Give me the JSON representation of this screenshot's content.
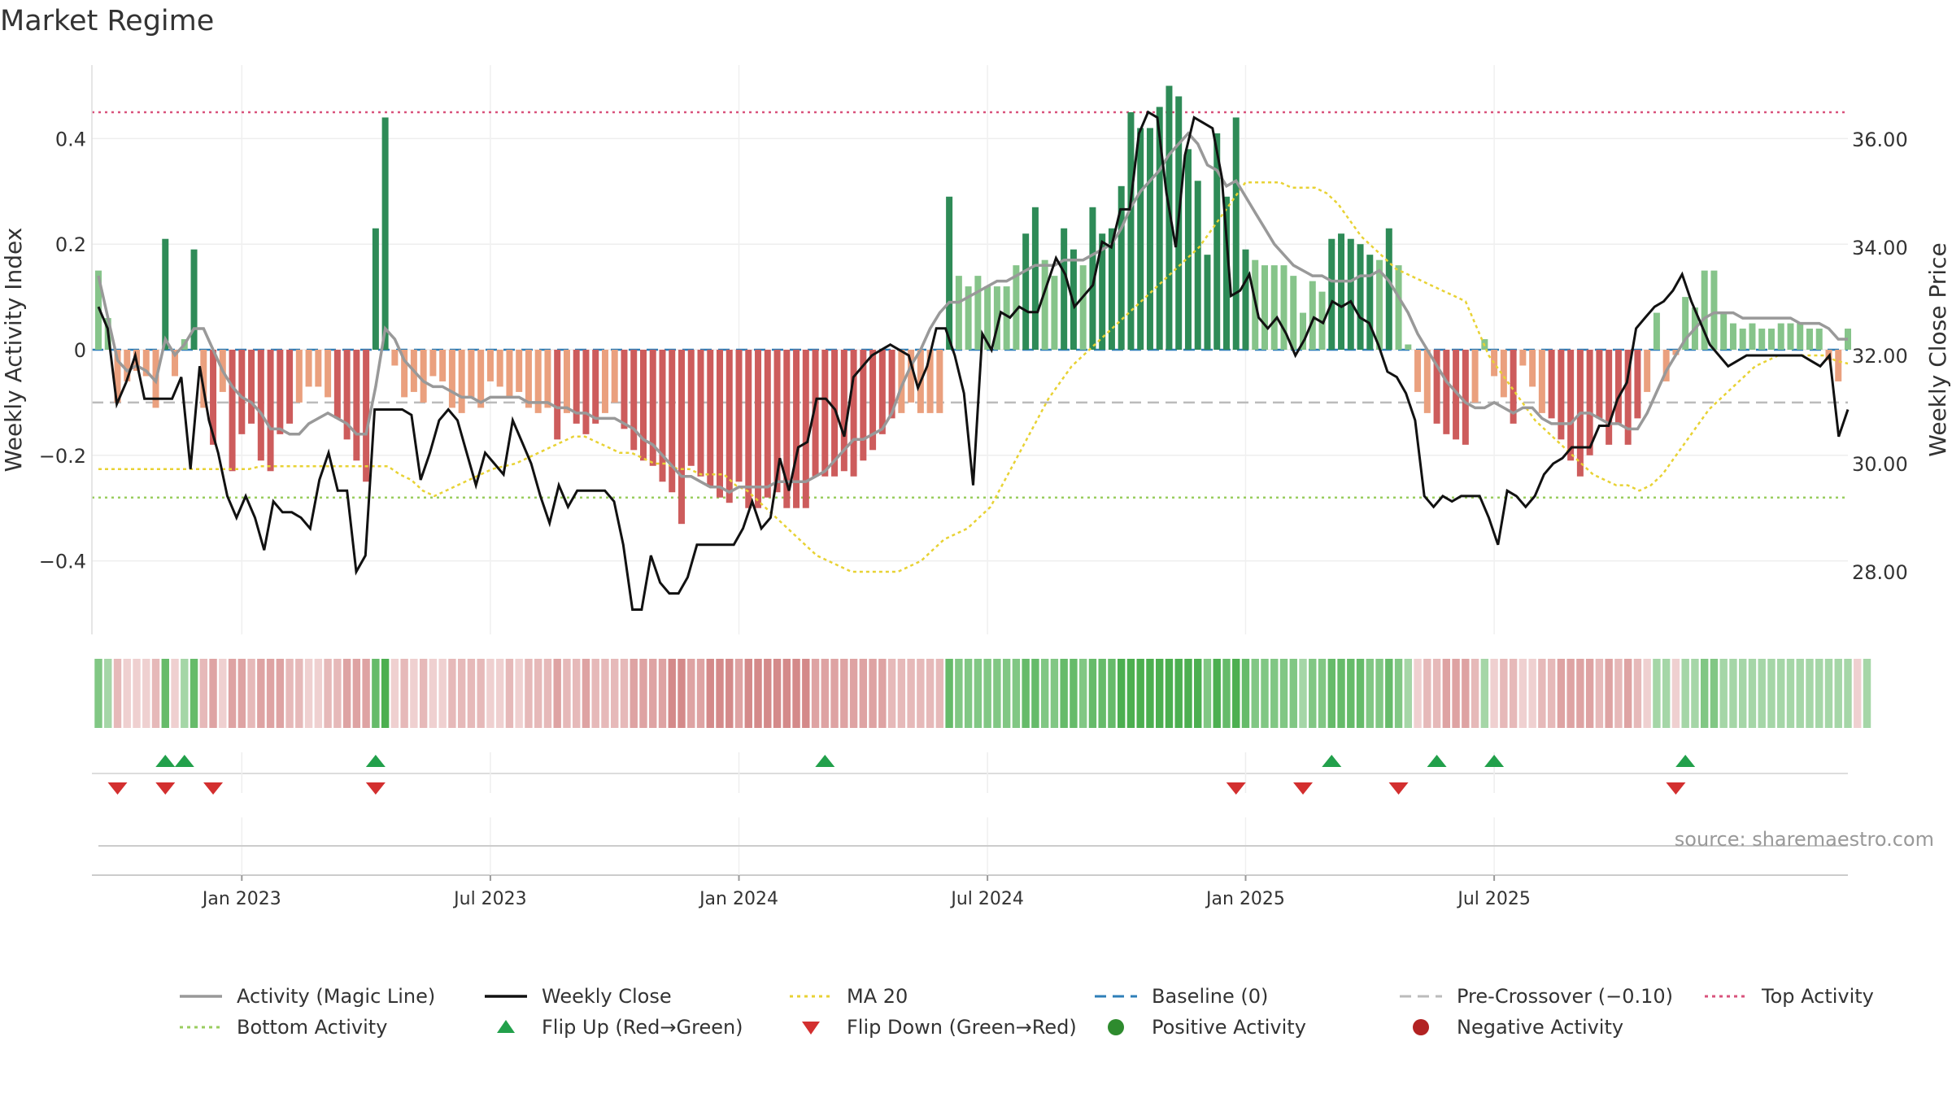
{
  "title": "Market Regime",
  "source": "source: sharemaestro.com",
  "chart_data": {
    "type": "bar",
    "ylabel_left": "Weekly Activity Index",
    "ylabel_right": "Weekly Close Price",
    "left_ticks": [
      {
        "value": 0.4,
        "label": "0.4"
      },
      {
        "value": 0.2,
        "label": "0.2"
      },
      {
        "value": 0,
        "label": "0"
      },
      {
        "value": -0.2,
        "label": "−0.2"
      },
      {
        "value": -0.4,
        "label": "−0.4"
      }
    ],
    "right_ticks": [
      {
        "value": 36,
        "label": "36.00"
      },
      {
        "value": 34,
        "label": "34.00"
      },
      {
        "value": 32,
        "label": "32.00"
      },
      {
        "value": 30,
        "label": "30.00"
      },
      {
        "value": 28,
        "label": "28.00"
      }
    ],
    "x_ticks": [
      {
        "week": 15,
        "label": "Jan 2023"
      },
      {
        "week": 41,
        "label": "Jul 2023"
      },
      {
        "week": 67,
        "label": "Jan 2024"
      },
      {
        "week": 93,
        "label": "Jul 2024"
      },
      {
        "week": 120,
        "label": "Jan 2025"
      },
      {
        "week": 146,
        "label": "Jul 2025"
      }
    ],
    "levels": {
      "top": 0.45,
      "bottom": -0.28,
      "pre_crossover": -0.1,
      "baseline": 0
    },
    "activity": [
      0.15,
      0.06,
      -0.1,
      -0.06,
      -0.04,
      -0.05,
      -0.11,
      0.21,
      -0.05,
      0.02,
      0.19,
      -0.11,
      -0.18,
      -0.08,
      -0.23,
      -0.16,
      -0.14,
      -0.21,
      -0.23,
      -0.16,
      -0.14,
      -0.1,
      -0.07,
      -0.07,
      -0.09,
      -0.13,
      -0.17,
      -0.21,
      -0.25,
      0.23,
      0.44,
      -0.03,
      -0.09,
      -0.08,
      -0.1,
      -0.05,
      -0.06,
      -0.11,
      -0.12,
      -0.09,
      -0.11,
      -0.06,
      -0.07,
      -0.09,
      -0.08,
      -0.11,
      -0.12,
      -0.11,
      -0.17,
      -0.12,
      -0.14,
      -0.16,
      -0.14,
      -0.12,
      -0.1,
      -0.15,
      -0.19,
      -0.21,
      -0.22,
      -0.25,
      -0.27,
      -0.33,
      -0.22,
      -0.24,
      -0.26,
      -0.28,
      -0.29,
      -0.25,
      -0.3,
      -0.3,
      -0.28,
      -0.27,
      -0.3,
      -0.3,
      -0.3,
      -0.24,
      -0.24,
      -0.24,
      -0.23,
      -0.24,
      -0.21,
      -0.19,
      -0.16,
      -0.13,
      -0.12,
      -0.1,
      -0.12,
      -0.12,
      -0.12,
      0.29,
      0.14,
      0.12,
      0.14,
      0.12,
      0.12,
      0.12,
      0.16,
      0.22,
      0.27,
      0.17,
      0.14,
      0.23,
      0.19,
      0.16,
      0.27,
      0.22,
      0.23,
      0.31,
      0.45,
      0.42,
      0.42,
      0.46,
      0.5,
      0.48,
      0.38,
      0.32,
      0.18,
      0.41,
      0.29,
      0.44,
      0.19,
      0.17,
      0.16,
      0.16,
      0.16,
      0.14,
      0.07,
      0.13,
      0.11,
      0.21,
      0.22,
      0.21,
      0.2,
      0.18,
      0.17,
      0.23,
      0.16,
      0.01,
      -0.08,
      -0.12,
      -0.14,
      -0.16,
      -0.17,
      -0.18,
      -0.1,
      0.02,
      -0.05,
      -0.09,
      -0.14,
      -0.03,
      -0.07,
      -0.12,
      -0.13,
      -0.17,
      -0.21,
      -0.24,
      -0.2,
      -0.13,
      -0.18,
      -0.14,
      -0.18,
      -0.13,
      -0.08,
      0.07,
      -0.06,
      -0.01,
      0.1,
      0.08,
      0.15,
      0.15,
      0.07,
      0.05,
      0.04,
      0.05,
      0.04,
      0.04,
      0.05,
      0.05,
      0.05,
      0.04,
      0.04,
      -0.02,
      -0.06,
      0.04
    ],
    "weekly_close": [
      32.9,
      32.5,
      31.1,
      31.5,
      32.0,
      31.2,
      31.2,
      31.2,
      31.2,
      31.6,
      29.9,
      31.8,
      30.8,
      30.2,
      29.4,
      29.0,
      29.4,
      29.0,
      28.4,
      29.3,
      29.1,
      29.1,
      29.0,
      28.8,
      29.7,
      30.2,
      29.5,
      29.5,
      28.0,
      28.3,
      31.0,
      31.0,
      31.0,
      31.0,
      30.9,
      29.7,
      30.2,
      30.8,
      31.0,
      30.8,
      30.2,
      29.6,
      30.2,
      30.0,
      29.8,
      30.8,
      30.4,
      30.0,
      29.4,
      28.9,
      29.6,
      29.2,
      29.5,
      29.5,
      29.5,
      29.5,
      29.3,
      28.5,
      27.3,
      27.3,
      28.3,
      27.8,
      27.6,
      27.6,
      27.9,
      28.5,
      28.5,
      28.5,
      28.5,
      28.5,
      28.8,
      29.3,
      28.8,
      29.0,
      30.1,
      29.5,
      30.3,
      30.4,
      31.2,
      31.2,
      31.0,
      30.5,
      31.6,
      31.8,
      32.0,
      32.1,
      32.2,
      32.1,
      32.0,
      31.4,
      31.8,
      32.5,
      32.5,
      32.0,
      31.3,
      29.6,
      32.4,
      32.1,
      32.8,
      32.7,
      32.9,
      32.8,
      32.8,
      33.3,
      33.8,
      33.5,
      32.9,
      33.1,
      33.3,
      34.1,
      34.0,
      34.7,
      34.7,
      36.1,
      36.5,
      36.4,
      35.0,
      34.0,
      35.7,
      36.4,
      36.3,
      36.2,
      35.3,
      33.1,
      33.2,
      33.5,
      32.7,
      32.5,
      32.7,
      32.4,
      32.0,
      32.3,
      32.7,
      32.6,
      33.0,
      32.9,
      33.0,
      32.7,
      32.6,
      32.2,
      31.7,
      31.6,
      31.3,
      30.8,
      29.4,
      29.2,
      29.4,
      29.3,
      29.4,
      29.4,
      29.4,
      29.0,
      28.5,
      29.5,
      29.4,
      29.2,
      29.4,
      29.8,
      30.0,
      30.1,
      30.3,
      30.3,
      30.3,
      30.7,
      30.7,
      31.2,
      31.5,
      32.5,
      32.7,
      32.9,
      33.0,
      33.2,
      33.5,
      33.0,
      32.6,
      32.2,
      32.0,
      31.8,
      31.9,
      32.0,
      32.0,
      32.0,
      32.0,
      32.0,
      32.0,
      32.0,
      31.9,
      31.8,
      32.0,
      30.5,
      31.0
    ],
    "magic_line": [
      0.14,
      0.06,
      -0.02,
      -0.04,
      -0.03,
      -0.04,
      -0.06,
      0.02,
      -0.01,
      0.01,
      0.04,
      0.04,
      0.0,
      -0.04,
      -0.07,
      -0.09,
      -0.1,
      -0.12,
      -0.15,
      -0.15,
      -0.16,
      -0.16,
      -0.14,
      -0.13,
      -0.12,
      -0.13,
      -0.14,
      -0.16,
      -0.16,
      -0.07,
      0.04,
      0.02,
      -0.02,
      -0.04,
      -0.06,
      -0.07,
      -0.07,
      -0.08,
      -0.09,
      -0.09,
      -0.1,
      -0.09,
      -0.09,
      -0.09,
      -0.09,
      -0.1,
      -0.1,
      -0.1,
      -0.11,
      -0.11,
      -0.12,
      -0.12,
      -0.13,
      -0.13,
      -0.13,
      -0.14,
      -0.15,
      -0.17,
      -0.18,
      -0.2,
      -0.22,
      -0.24,
      -0.24,
      -0.25,
      -0.26,
      -0.26,
      -0.27,
      -0.26,
      -0.26,
      -0.26,
      -0.26,
      -0.25,
      -0.25,
      -0.25,
      -0.25,
      -0.24,
      -0.23,
      -0.21,
      -0.19,
      -0.17,
      -0.17,
      -0.16,
      -0.15,
      -0.12,
      -0.07,
      -0.03,
      0.0,
      0.04,
      0.07,
      0.09,
      0.09,
      0.1,
      0.11,
      0.12,
      0.13,
      0.13,
      0.14,
      0.15,
      0.16,
      0.16,
      0.16,
      0.17,
      0.17,
      0.17,
      0.18,
      0.19,
      0.2,
      0.23,
      0.27,
      0.3,
      0.32,
      0.34,
      0.37,
      0.39,
      0.41,
      0.39,
      0.35,
      0.34,
      0.31,
      0.32,
      0.29,
      0.26,
      0.23,
      0.2,
      0.18,
      0.16,
      0.15,
      0.14,
      0.14,
      0.13,
      0.13,
      0.13,
      0.14,
      0.14,
      0.15,
      0.13,
      0.1,
      0.07,
      0.03,
      0.0,
      -0.03,
      -0.06,
      -0.08,
      -0.1,
      -0.11,
      -0.11,
      -0.1,
      -0.11,
      -0.12,
      -0.11,
      -0.11,
      -0.13,
      -0.14,
      -0.14,
      -0.14,
      -0.12,
      -0.12,
      -0.13,
      -0.14,
      -0.14,
      -0.15,
      -0.15,
      -0.12,
      -0.08,
      -0.04,
      -0.01,
      0.02,
      0.04,
      0.06,
      0.07,
      0.07,
      0.07,
      0.06,
      0.06,
      0.06,
      0.06,
      0.06,
      0.06,
      0.05,
      0.05,
      0.05,
      0.04,
      0.02,
      0.02
    ],
    "ma20": [
      29.9,
      29.9,
      29.9,
      29.9,
      29.9,
      29.9,
      29.9,
      29.9,
      29.9,
      29.9,
      29.9,
      29.9,
      29.9,
      29.9,
      29.95,
      29.95,
      29.95,
      29.95,
      29.95,
      29.95,
      29.95,
      29.95,
      29.95,
      29.95,
      29.95,
      29.95,
      29.8,
      29.7,
      29.5,
      29.4,
      29.5,
      29.6,
      29.7,
      29.8,
      29.9,
      29.95,
      30.0,
      30.1,
      30.2,
      30.3,
      30.4,
      30.5,
      30.5,
      30.4,
      30.3,
      30.2,
      30.2,
      30.1,
      30.0,
      30.0,
      29.9,
      29.9,
      29.8,
      29.8,
      29.8,
      29.6,
      29.5,
      29.3,
      29.1,
      28.9,
      28.7,
      28.5,
      28.3,
      28.2,
      28.1,
      28.0,
      28.0,
      28.0,
      28.0,
      28.0,
      28.1,
      28.2,
      28.4,
      28.6,
      28.7,
      28.8,
      29.0,
      29.2,
      29.6,
      30.0,
      30.4,
      30.8,
      31.2,
      31.5,
      31.8,
      32.0,
      32.2,
      32.4,
      32.6,
      32.8,
      33.0,
      33.2,
      33.4,
      33.6,
      33.8,
      34.0,
      34.3,
      34.6,
      34.9,
      35.2,
      35.2,
      35.2,
      35.2,
      35.1,
      35.1,
      35.1,
      35.0,
      34.8,
      34.5,
      34.2,
      34.0,
      33.8,
      33.6,
      33.5,
      33.4,
      33.3,
      33.2,
      33.1,
      33.0,
      32.5,
      32.0,
      31.7,
      31.4,
      31.1,
      30.8,
      30.6,
      30.4,
      30.2,
      30.0,
      29.8,
      29.7,
      29.6,
      29.6,
      29.5,
      29.6,
      29.8,
      30.1,
      30.4,
      30.7,
      31.0,
      31.2,
      31.4,
      31.6,
      31.8,
      31.9,
      32.0,
      32.0,
      32.0,
      32.0,
      32.0,
      31.9,
      31.85
    ],
    "ma20_start_week": 0,
    "regime_strip": [
      1,
      1,
      -1,
      -1,
      -1,
      -1,
      -1,
      1,
      -1,
      1,
      1,
      -1,
      -1,
      -1,
      -1,
      -1,
      -1,
      -1,
      -1,
      -1,
      -1,
      -1,
      -1,
      -1,
      -1,
      -1,
      -1,
      -1,
      -1,
      1,
      1,
      -1,
      -1,
      -1,
      -1,
      -1,
      -1,
      -1,
      -1,
      -1,
      -1,
      -1,
      -1,
      -1,
      -1,
      -1,
      -1,
      -1,
      -1,
      -1,
      -1,
      -1,
      -1,
      -1,
      -1,
      -1,
      -1,
      -1,
      -1,
      -1,
      -1,
      -1,
      -1,
      -1,
      -1,
      -1,
      -1,
      -1,
      -1,
      -1,
      -1,
      -1,
      -1,
      -1,
      -1,
      -1,
      -1,
      -1,
      -1,
      -1,
      -1,
      -1,
      -1,
      -1,
      -1,
      -1,
      -1,
      -1,
      -1,
      1,
      1,
      1,
      1,
      1,
      1,
      1,
      1,
      1,
      1,
      1,
      1,
      1,
      1,
      1,
      1,
      1,
      1,
      1,
      1,
      1,
      1,
      1,
      1,
      1,
      1,
      1,
      1,
      1,
      1,
      1,
      1,
      1,
      1,
      1,
      1,
      1,
      1,
      1,
      1,
      1,
      1,
      1,
      1,
      1,
      1,
      1,
      1,
      1,
      -1,
      -1,
      -1,
      -1,
      -1,
      -1,
      -1,
      1,
      -1,
      -1,
      -1,
      -1,
      -1,
      -1,
      -1,
      -1,
      -1,
      -1,
      -1,
      -1,
      -1,
      -1,
      -1,
      -1,
      -1,
      1,
      1,
      -1,
      1,
      1,
      1,
      1,
      1,
      1,
      1,
      1,
      1,
      1,
      1,
      1,
      1,
      1,
      1,
      1,
      1,
      1,
      -1,
      1
    ],
    "flip_up_weeks": [
      7,
      9,
      29,
      76,
      129,
      140,
      146,
      166
    ],
    "flip_down_weeks": [
      2,
      7,
      12,
      29,
      119,
      126,
      136,
      165
    ],
    "series": [
      {
        "name": "Activity (Magic Line)",
        "color": "#999999"
      },
      {
        "name": "Weekly Close",
        "color": "#111111"
      },
      {
        "name": "MA 20",
        "color": "#e8d234"
      },
      {
        "name": "Baseline (0)",
        "color": "#2e7fb8"
      },
      {
        "name": "Pre-Crossover (−0.10)",
        "color": "#bbbbbb"
      },
      {
        "name": "Top Activity",
        "color": "#d9537c"
      },
      {
        "name": "Bottom Activity",
        "color": "#9acd5f"
      },
      {
        "name": "Flip Up (Red→Green)",
        "color": "#22a04b"
      },
      {
        "name": "Flip Down (Green→Red)",
        "color": "#d32f2f"
      },
      {
        "name": "Positive Activity",
        "color": "#2e8b2e"
      },
      {
        "name": "Negative Activity",
        "color": "#b22222"
      }
    ]
  }
}
